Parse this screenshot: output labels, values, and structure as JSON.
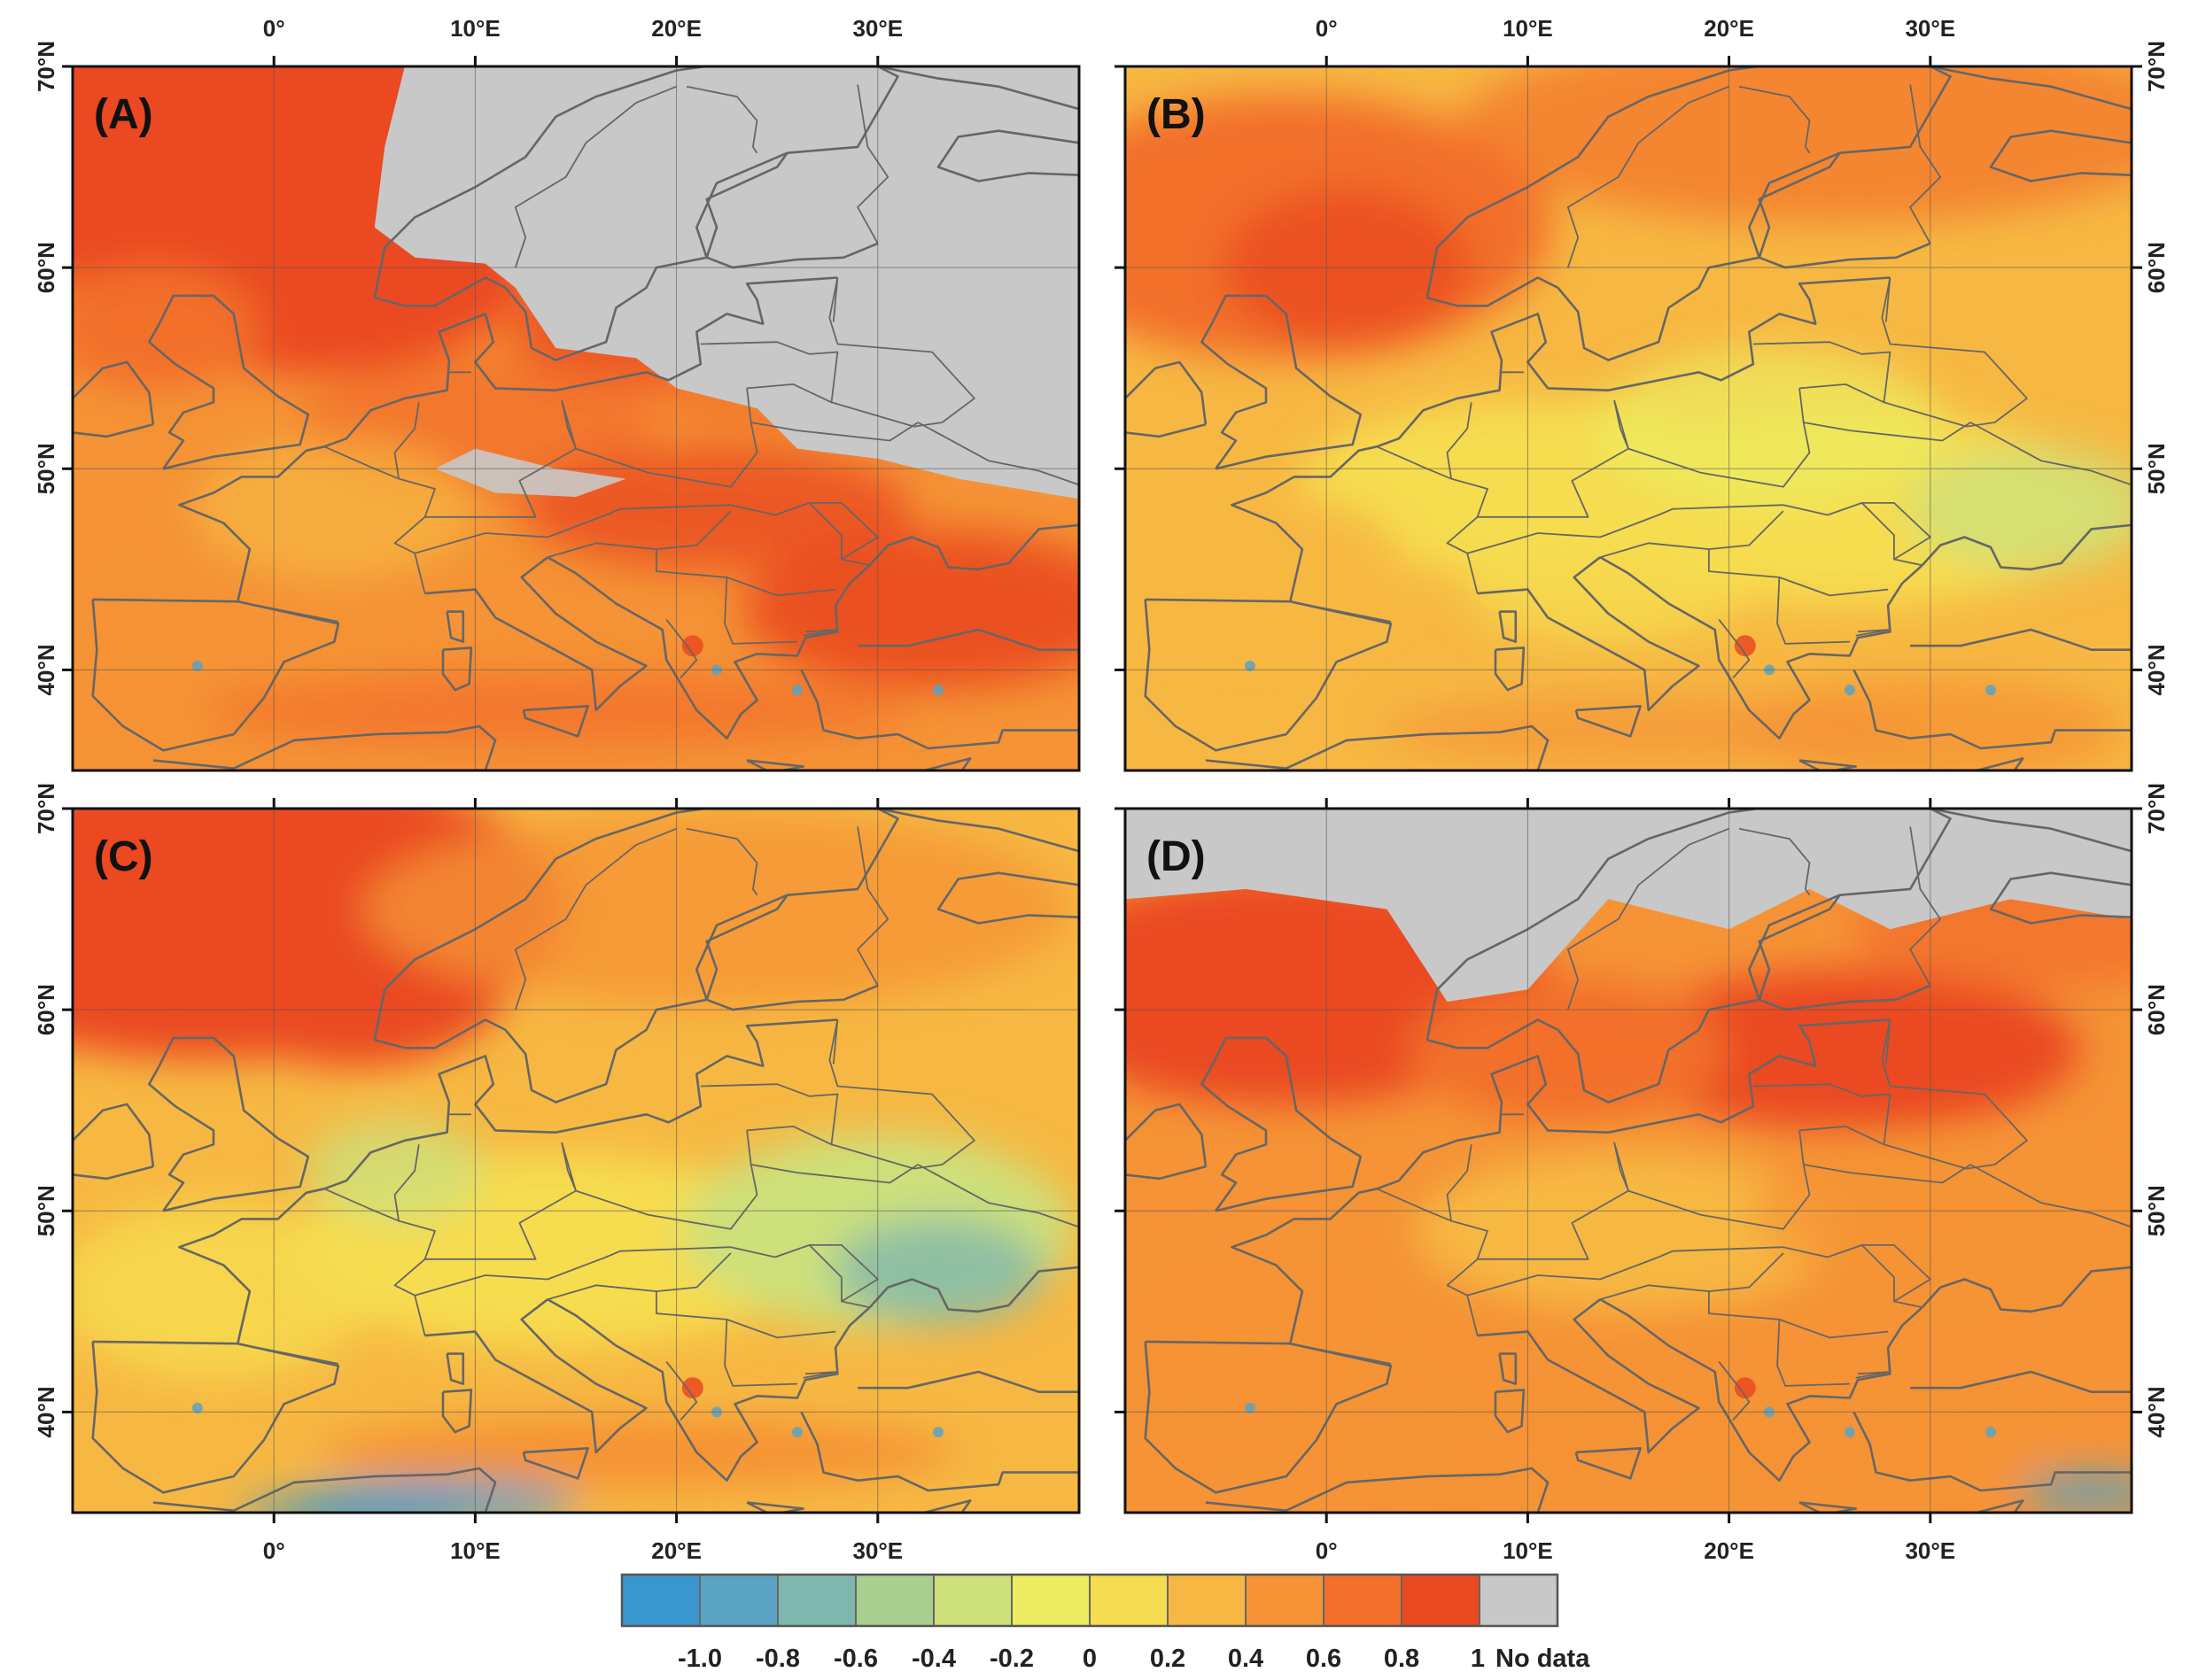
{
  "figure": {
    "extent": {
      "lon_min": -10,
      "lon_max": 40,
      "lat_min": 35,
      "lat_max": 70
    },
    "lon_ticks": [
      {
        "value": 0,
        "label": "0°"
      },
      {
        "value": 10,
        "label": "10°E"
      },
      {
        "value": 20,
        "label": "20°E"
      },
      {
        "value": 30,
        "label": "30°E"
      }
    ],
    "lat_ticks": [
      {
        "value": 40,
        "label": "40°N"
      },
      {
        "value": 50,
        "label": "50°N"
      },
      {
        "value": 60,
        "label": "60°N"
      },
      {
        "value": 70,
        "label": "70°N"
      }
    ],
    "panels": [
      {
        "id": "A",
        "label": "(A)",
        "no_data": "north-east"
      },
      {
        "id": "B",
        "label": "(B)",
        "no_data": "none"
      },
      {
        "id": "C",
        "label": "(C)",
        "no_data": "none"
      },
      {
        "id": "D",
        "label": "(D)",
        "no_data": "north"
      }
    ],
    "colors": {
      "no_data": "#c8c8c8",
      "coastline": "#666666"
    }
  },
  "legend": {
    "classes": [
      {
        "color": "#3a96cf"
      },
      {
        "color": "#5aa3c2"
      },
      {
        "color": "#7fb7ae"
      },
      {
        "color": "#a8cf8e"
      },
      {
        "color": "#cde07a"
      },
      {
        "color": "#ecec60"
      },
      {
        "color": "#f6dc50"
      },
      {
        "color": "#f7b843"
      },
      {
        "color": "#f59336"
      },
      {
        "color": "#f2702b"
      },
      {
        "color": "#ea4a20"
      },
      {
        "color": "#c8c8c8"
      }
    ],
    "tick_labels": [
      "-1.0",
      "-0.8",
      "-0.6",
      "-0.4",
      "-0.2",
      "0",
      "0.2",
      "0.4",
      "0.6",
      "0.8",
      "1"
    ],
    "no_data_label": "No data"
  }
}
